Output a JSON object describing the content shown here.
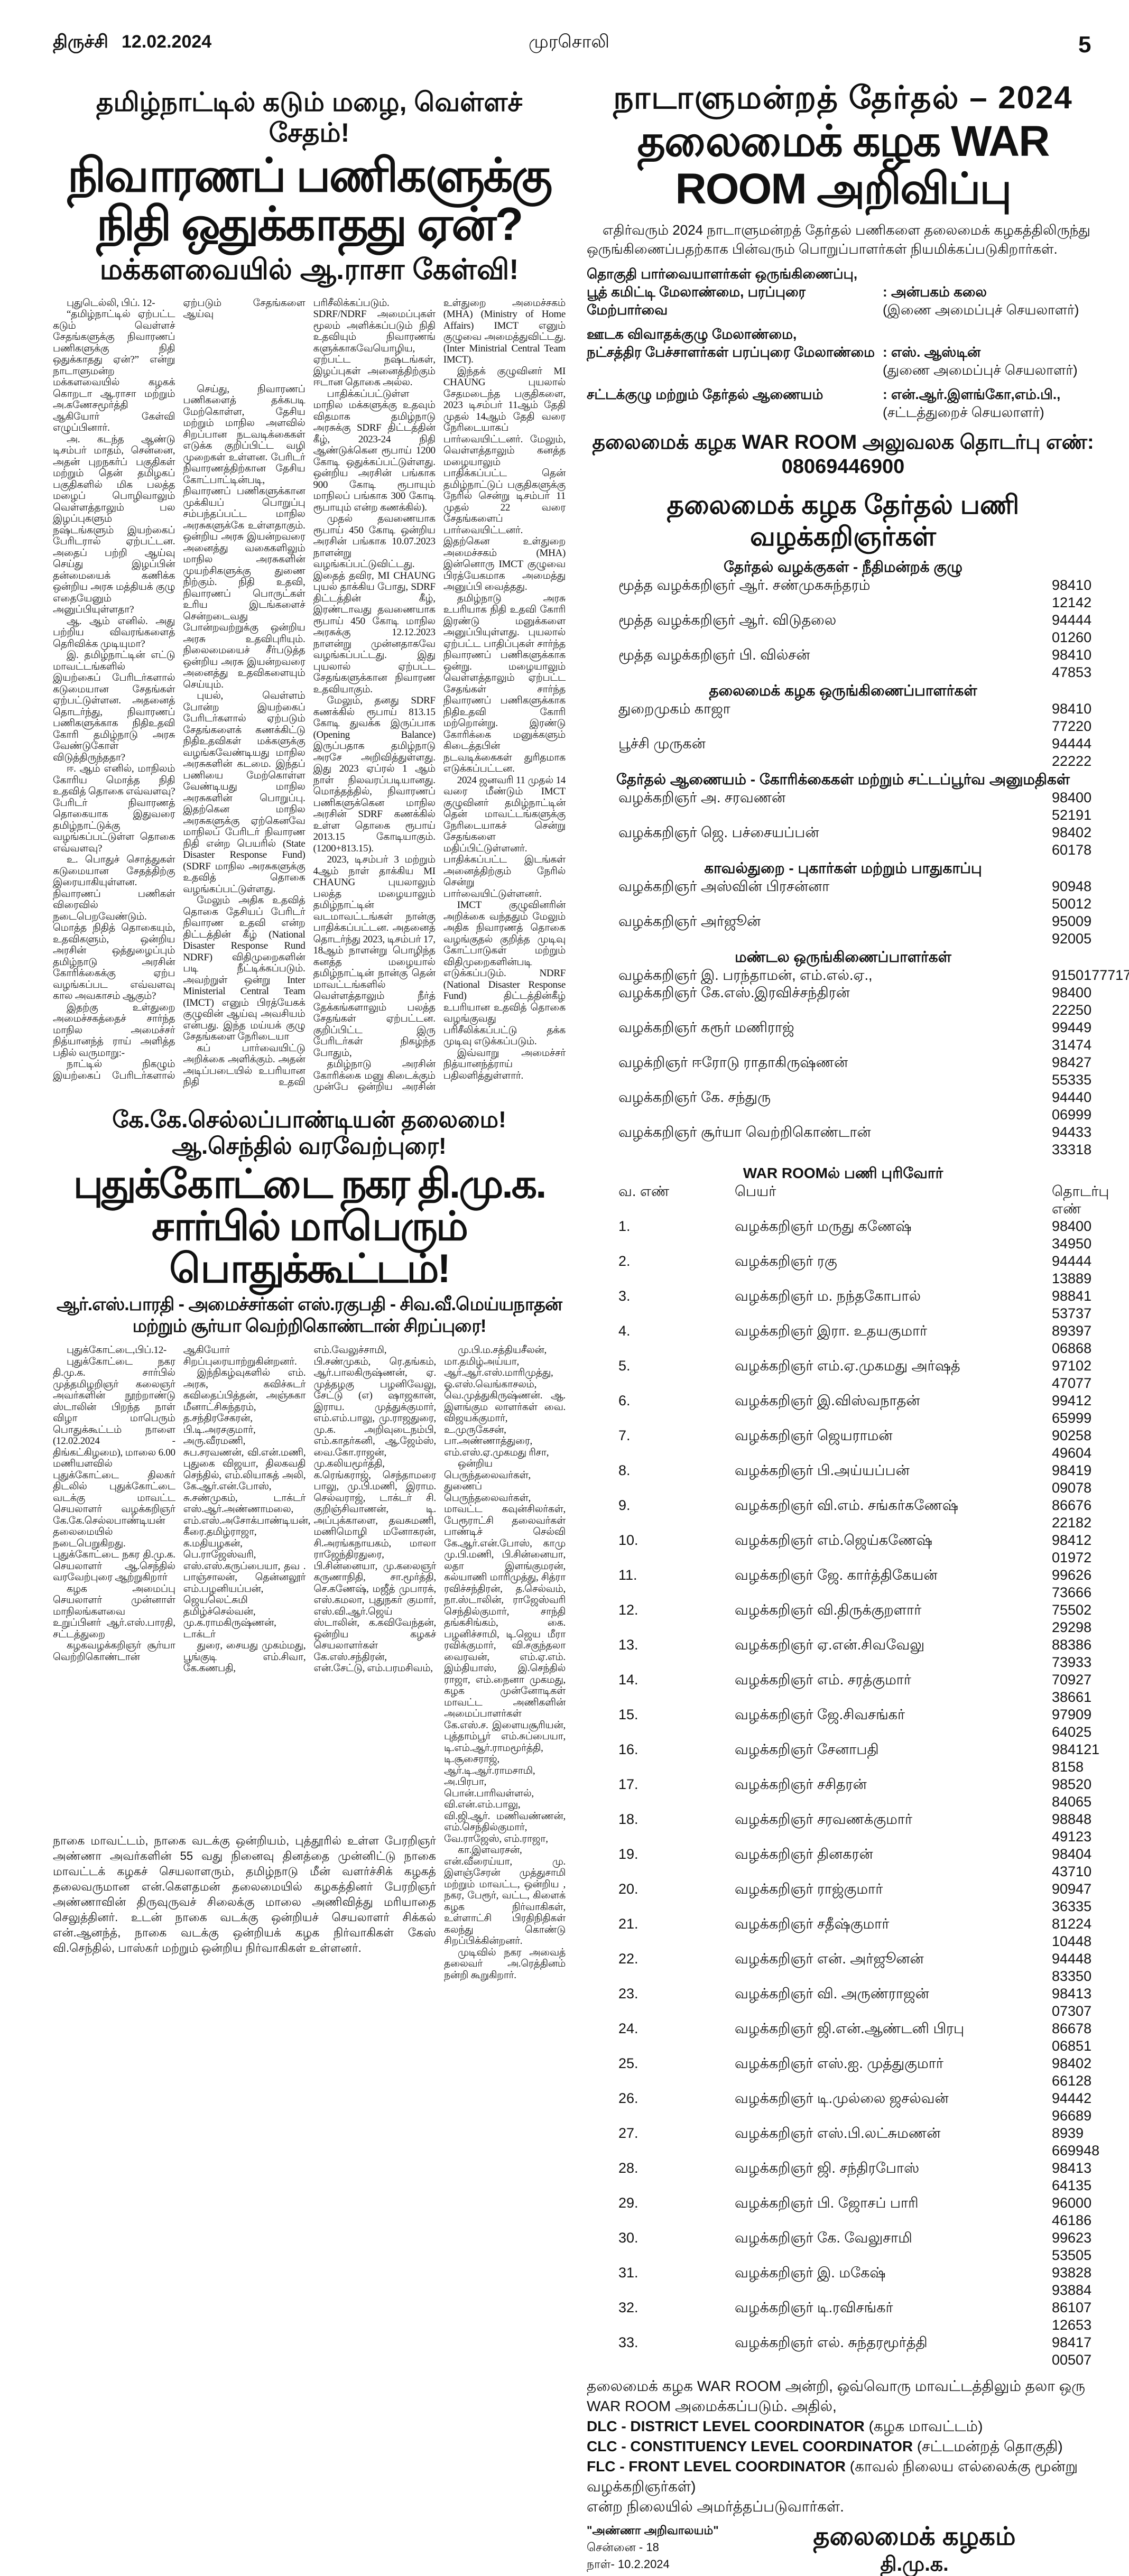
{
  "header": {
    "city": "திருச்சி",
    "date": "12.02.2024",
    "paper": "முரசொலி",
    "page": "5"
  },
  "article1": {
    "kicker": "தமிழ்நாட்டில் கடும் மழை, வெள்ளச் சேதம்!",
    "headline": "நிவாரணப் பணிகளுக்கு நிதி ஒதுக்காதது ஏன்?",
    "subhead": "மக்களவையில் ஆ.ராசா கேள்வி!",
    "columns": [
      [
        "புதுடெல்லி, பிப். 12-",
        "“தமிழ்நாட்டில் ஏற்பட்ட கடும் வெள்ளச் சேதங்களுக்கு நிவாரணப் பணிகளுக்கு நிதி ஒதுக்காதது ஏன்?” என்று நாடாளுமன்ற மக்களவையில் கழகக் கொறடா ஆ.ராசா மற்றும் அ.கணேசமூர்த்தி ஆகியோர் கேள்வி எழுப்பினார்.",
        "அ. கடந்த ஆண்டு டிசம்பர் மாதம், சென்னை, அதன் புறநகர்ப் பகுதிகள் மற்றும் தென் தமிழகப் பகுதிகளில் மிக பலத்த மழைப் பொழிவாலும் வெள்ளத்தாலும் பல இழப்புகளும் நஷ்டங்களும் இயற்கைப் பேரிடரால் ஏற்பட்டன. அதைப் பற்றி ஆய்வு செய்து இழப்பின் தன்மையைக் கணிக்க ஒன்றிய அரசு மத்தியக் குழு எதையேனும் அனுப்பியுள்ளதா?",
        "ஆ. ஆம் எனில். அது பற்றிய விவரங்களைத் தெரிவிக்க முடியுமா?",
        "இ. தமிழ்நாட்டின் எட்டு மாவட்டங்களில் இயற்கைப் பேரிடர்களால் கடுமையான சேதங்கள் ஏற்பட்டுள்ளன. அதனைத் தொடர்ந்து, நிவாரணப் பணிகளுக்காக நிதிஉதவி கோரி தமிழ்நாடு அரசு வேண்டுகோள் விடுத்திருந்ததா?",
        "ஈ. ஆம் எனில், மாநிலம் கோரிய மொத்த நிதி உதவித் தொகை எவ்வளவு? பேரிடர் நிவாரணத் தொகையாக இதுவரை தமிழ்நாட்டுக்கு வழங்கப்பட்டுள்ள தொகை எவ்வளவு?",
        "உ. பொதுச் சொத்துகள் கடுமையான சேதத்திற்கு இரையாகியுள்ளன. நிவாரணப் பணிகள் விரைவில் நடைபெறவேண்டும். மொத்த நிதித் தொகையும், உதவிகளும், ஒன்றிய அரசின் ஒத்துழைப்பும் தமிழ்நாடு அரசின் கோரிக்கைக்கு ஏற்ப வழங்கப்பட எவ்வளவு கால அவகாசம் ஆகும்?",
        "இதற்கு உள்துறை அமைச்சகத்தைச் சார்ந்த மாநில அமைச்சர் நித்யானந்த் ராய் அளித்த பதில் வருமாறு:-",
        "நாட்டில் நிகழும் இயற்கைப் பேரிடர்களால் ஏற்படும் சேதங்களை ஆய்வு"
      ],
      [
        "செய்து, நிவாரணப் பணிகளைத் தக்கபடி மேற்கொள்ள, தேசிய மற்றும் மாநில அளவில் சிறப்பான நடவடிக்கைகள் எடுக்க குறிப்பிட்ட வழி முறைகள் உள்ளன. பேரிடர் நிவாரணத்திற்கான தேசிய கோட்பாட்டின்படி, நிவாரணப் பணிகளுக்கான முக்கியப் பொறுப்பு சம்பந்தப்பட்ட மாநில அரசுகளுக்கே உள்ளதாகும். ஒன்றிய அரசு இயன்றவரை அனைத்து வகைகளிலும் மாநில அரசுகளின் முயற்சிகளுக்கு துணை நிற்கும். நிதி உதவி, நிவாரணப் பொருட்கள் உரிய இடங்களைச் சென்றடைவது போன்றவற்றுக்கு ஒன்றிய அரசு உதவிபுரியும். நிலைமையைச் சீர்படுத்த ஒன்றிய அரசு இயன்றவரை அனைத்து உதவிகளையும் செய்யும்.",
        "புயல், வெள்ளம் போன்ற இயற்கைப் பேரிடர்களால் ஏற்படும் சேதங்களைக் கணக்கிட்டு நிதிஉதவிகள் மக்களுக்கு வழங்கவேண்டியது மாநில அரசுகளின் கடமை. இந்தப் பணியை மேற்கொள்ள வேண்டியது மாநில அரசுகளின் பொறுப்பு. இதற்கென மாநில அரசுகளுக்கு ஏற்கெனவே மாநிலப் பேரிடர் நிவாரண நிதி என்ற பெயரில் (State Disaster Response Fund) (SDRF மாநில அரசுகளுக்கு உதவித் தொகை வழங்கப்பட்டுள்ளது.",
        "மேலும் அதிக உதவித் தொகை தேசியப் பேரிடர் நிவாரண உதவி என்ற திட்டத்தின் கீழ் (National Disaster Response Rund NDRF) விதிமுறைகளின் படி நீட்டிக்கப்படும். அவற்றுள் ஒன்று Inter Ministerial Central Team (IMCT) எனும் பிரத்யேகக் குழுவின் ஆய்வு அவசியம் என்பது. இந்த மய்யக் குழு சேதங்களை நேரிடையா"
      ],
      [
        "கப் பார்வையிட்டு அறிக்கை அளிக்கும். அதன் அடிப்படையில் உபரியான நிதி உதவி பரிசீலிக்கப்படும். SDRF/NDRF அமைப்புகள் மூலம் அளிக்கப்படும் நிதி உதவியும் நிவாரணங் களுக்காகவேயொழிய, ஏற்பட்ட நஷ்டங்கள், இழப்புகள் அனைத்திற்கும் ஈடான தொகை அல்ல.",
        "பாதிக்கப்பட்டுள்ள மாநில மக்களுக்கு உதவும் விதமாக தமிழ்நாடு அரசுக்கு SDRF திட்டத்தின் கீழ், 2023-24 நிதி ஆண்டுக்கென ரூபாய் 1200 கோடி ஒதுக்கப்பட்டுள்ளது. ஒன்றிய அரசின் பங்காக 900 கோடி ரூபாயும் மாநிலப் பங்காக 300 கோடி ரூபாயும் என்ற கணக்கில்).",
        "முதல் தவணையாக ரூபாய் 450 கோடி ஒன்றிய அரசின் பங்காக 10.07.2023 நாளன்று வழங்கப்பட்டுவிட்டது. இதைத் தவிர, MI CHAUNG புயல் தாக்கிய போது, SDRF திட்டத்தின் கீழ், இரண்டாவது தவணையாக ரூபாய் 450 கோடி மாநில அரசுக்கு 12.12.2023 நாளன்று முன்னதாகவே வழங்கப்பட்டது. இது புயலால் ஏற்பட்ட சேதங்களுக்கான நிவாரண உதவியாகும்.",
        "மேலும், தனது SDRF கணக்கில் ரூபாய் 813.15 கோடி துவக்க இருப்பாக (Opening Balance) இருப்பதாக தமிழ்நாடு அரசே அறிவித்துள்ளது. இது 2023 ஏப்ரல் 1 ஆம் நாள் நிலவரப்படியானது. மொத்தத்தில், நிவாரணப் பணிகளுக்கென மாநில அரசின் SDRF கணக்கில் உள்ள தொகை ரூபாய் 2013.15 கோடியாகும். (1200+813.15).",
        "2023, டிசம்பர் 3 மற்றும் 4ஆம் நாள் தாக்கிய MI CHAUNG புயலாலும் பலத்த மழையாலும் தமிழ்நாட்டின் வடமாவட்டங்கள் நான்கு பாதிக்கப்பட்டன. அதனைத் தொடர்ந்து 2023, டிசம்பர் 17, 18ஆம் நாளன்று பொழிந்த கனத்த மழையால் தமிழ்நாட்டின் நான்கு தென் மாவட்டங்களில் வெள்ளத்தாலும் நீர்த் தேக்கங்களாலும் பலத்த சேதங்கள் ஏற்பட்டன. குறிப்பிட்ட இரு பேரிடர்கள் நிகழ்ந்த போதும்,"
      ],
      [
        "தமிழ்நாடு அரசின் கோரிக்கை மனு கிடைக்கும் முன்பே ஒன்றிய அரசின் உள்துறை அமைச்சகம் (MHA) (Ministry of Home Affairs) IMCT எனும் குழுவை அமைத்துவிட்டது. (Inter Ministrial Central Team IMCT).",
        "இந்தக் குழுவினர் MI CHAUNG புயலால் சேதமடைந்த பகுதிகளை, 2023 டிசம்பர் 11ஆம் தேதி முதல் 14ஆம் தேதி வரை நேரிடையாகப் பார்வையிட்டனர். மேலும், வெள்ளத்தாலும் கனத்த மழையாலும் பாதிக்கப்பட்ட தென் தமிழ்நாட்டுப் பகுதிகளுக்கு நேரில் சென்று டிசம்பர் 11 முதல் 22 வரை சேதங்களைப் பார்வையிட்டனர். இதற்கென உள்துறை அமைச்சகம் (MHA) இன்னொரு IMCT குழுவை பிரத்யேகமாக அமைத்து அனுப்பி வைத்தது.",
        "தமிழ்நாடு அரசு உபரியாக நிதி உதவி கோரி இரண்டு மனுக்களை அனுப்பியுள்ளது. புயலால் ஏற்பட்ட பாதிப்புகள் சார்ந்த நிவாரணப் பணிகளுக்காக ஒன்று. மழையாலும் வெள்ளத்தாலும் ஏற்பட்ட சேதங்கள் சார்ந்த நிவாரணப் பணிகளுக்காக நிதிஉதவி கோரி மற்றொன்று. இரண்டு கோரிக்கை மனுக்களும் கிடைத்தபின் நடவடிக்கைகள் துரிதமாக எடுக்கப்பட்டன.",
        "2024 ஜனவரி 11 முதல் 14 வரை மீண்டும் IMCT குழுவினர் தமிழ்நாட்டின் தென் மாவட்டங்களுக்கு நேரிடையாகச் சென்று சேதங்களை மதிப்பிட்டுள்ளனர். பாதிக்கப்பட்ட இடங்கள் அனைத்திற்கும் நேரில் சென்று பார்வையிட்டுள்ளனர்.",
        "IMCT குழுவினரின் அறிக்கை வந்ததும் மேலும் அதிக நிவாரணத் தொகை வழங்குதல் குறித்த முடிவு கோட்பாடுகள் மற்றும் விதிமுறைகளின்படி எடுக்கப்படும். NDRF (National Disaster Response Fund) திட்டத்தின்கீழ் உபரியான உதவித் தொகை வழங்குவது பரிசீலிக்கப்பட்டு தக்க முடிவு எடுக்கப்படும்.",
        "இவ்வாறு அமைச்சர் நித்யானந்த்ராய் பதிலளித்துள்ளார்."
      ]
    ]
  },
  "article2": {
    "kicker": "கே.கே.செல்லப்பாண்டியன் தலைமை! ஆ.செந்தில் வரவேற்புரை!",
    "headline": "புதுக்கோட்டை நகர தி.மு.க. சார்பில் மாபெரும் பொதுக்கூட்டம்!",
    "subhead": "ஆர்.எஸ்.பாரதி - அமைச்சர்கள் எஸ்.ரகுபதி - சிவ.வீ.மெய்யநாதன் மற்றும் சூர்யா வெற்றிகொண்டான் சிறப்புரை!",
    "columns": [
      [
        "புதுக்கோட்டை,பிப்.12-",
        "புதுக்கோட்டை நகர தி.மு.க. சார்பில் முத்தமிழறிஞர் கலைஞர் அவர்களின் நூற்றாண்டு ஸ்டாலின் பிறந்த நாள் விழா மாபெரும் பொதுக்கூட்டம் நாளை (12.02.2024 - திங்கட்கிழமை), மாலை 6.00 மணியளவில் புதுக்கோட்டை திலகர் திடலில் புதுக்கோட்டை வடக்கு மாவட்ட செயலாளர் வழக்கறிஞர் கே.கே.செல்லபாண்டியன் தலைமையில் நடைபெறுகிறது. புதுக்கோட்டை நகர தி.மு.க. செயலாளர் ஆ.செந்தில் வரவேற்புரை ஆற்றுகிறார்",
        "கழக அமைப்பு செயலாளர் முன்னாள் மாநிலங்களவை உறுப்பினர் ஆர்.எஸ்.பாரதி, சட்டத்துறை"
      ],
      [
        "கழகவழக்கறிஞர் சூர்யா வெற்றிகொண்டான் ஆகியோர் சிறப்புரையாற்றுகின்றனர்.",
        "இந்நிகழ்வுகளில் எம். அரசு, கவிச்சுடர் கவிதைப்பித்தன், அஞ்சுகா மீனாட்சிசுந்தரம், த.சந்திரசேகரன், பி.டி.அரசகுமார், அரு.வீரமணி, சுப.சரவணன், வி.என்.மணி, புதுகை விஜயா, திலகவதி செந்தில், எம்.லியாகத் அலி, கே.ஆர்.என்.போஸ், சு.சண்முகம், டாக்டர் எஸ்.ஆர்.அண்ணாமலை, எம்.எஸ்.அசோக்பாண்டியன், கீரை.தமிழ்ராஜா, க.மதியழகன், பெ.ராஜேஸ்வரி, எஸ்.எஸ்.கருப்பையா, தவ . பாஞ்சாலன், தென்னலூர் எம்.பழனியப்பன், ஜெயலெட்சுமி தமிழ்ச்செல்வன், மு.க.ராமகிருஷ்ணன், டாக்டர்"
      ],
      [
        "துரை, சையது முகம்மது, பூங்குடி எம்.சிவா, கே.கணபதி, எம்.வேலுச்சாமி, பி.சண்முகம், ரெ.தங்கம், ஆர்.பாலகிருஷ்ணன், ஏ. முத்தழகு பழனிவேலு, சேட்டு (எ) ஷாஜகான், இராய. முத்துக்குமார், எம்.எம்.பாலு, மு.ராஜதுரை, மு.க. அறிவுடைநம்பி, எம்.காதர்கனி, ஆ.ஜேம்ஸ், வை.கோ.ராஜன், மு.கலியமூர்த்தி, க.ரெங்கராஜ், செந்தாமரை பாலு, மு.பி.மணி, இராம. செல்வராஜ், டாக்டர் சி. குறிஞ்சிவாணன், டி. அப்புக்காளை, தவசுமணி, மணிமொழி மனோகரன், சி.அரங்கநாயகம், மாலா ராஜேந்திரதுரை, பி.சின்னையா, மு.கலைஞர் கருணாநிதி, சா.மூர்த்தி, செ.கணேஷ், மஜீத் முபாரக், எஸ்.கமலா, புதுநகர் குமார், எஸ்.வி.ஆர்.ஜெய் ஸ்டாலின், க.கவிவேந்தன், ஒன்றிய கழகச் செயலாளர்கள் கே.எஸ்.சந்திரன், என்.சேட்டு, எம்.பரமசிவம்,"
      ],
      [
        "மு.பி.ம.சத்தியசீலன், மா.தமிழ்அய்யா, ஆர்.ஆர்.எஸ்.மாரிமுத்து, ஓ.எஸ்.வெங்காசலம், வெ.முத்துகிருஷ்ணன். ஆ. இளங்கும லாளர்கள் வை. விஜயக்குமார், உ.முருகேசன், பா.அண்ணாத்துரை, எம்.எஸ்.ஏ.முகமது ரிசா,",
        "ஒன்றிய பெருந்தலைவர்கள், துணைப் பெருந்தலைவர்கள், மாவட்ட கவுன்சிலர்கள், பேரூராட்சி தலைவர்கள் பாண்டிச் செல்வி கே.ஆர்.என்.போஸ், காமு மு.பி.மணி, பி.சின்னையா, லதா இளங்குமரன், கல்யாணி மாரிமுத்து, சித்ரா ரவிச்சந்திரன், த.செல்வம், நா.ஸ்டாலின், ராஜேஸ்வரி செந்தில்குமார், சாந்தி தங்கசிங்கம், கை. பழனிச்சாமி, டி.ஜெய மீரா ரவிக்குமார், வி.சகுந்தலா வைரவன், எம்.ஏ.எம். இம்தியாஸ், இ.செந்தில் ராஜா, எம்.நைனா முகமது, கழக முன்னோடிகள் மாவட்ட அணிகளின் அமைப்பாளர்கள் கே.எஸ்.ச. இளையசூரியன், புத்தாம்பூர் எம்.சுப்பையா, டி.எம்.ஆர்.ராமமூர்த்தி, டி.சூசைராஜ், ஆர்.டி.ஆர்.ராமசாமி, அ.பிரபா, பொன்.பாரிவள்ளல், வி.என்.எம்.பாலு, வி.ஜி.ஆர். மணிவண்ணன், எம்.செந்தில்குமார், வே.ராஜேஸ், எம்.ராஜா,",
        "கா.இளவரசன், என்.வீரைய்யா, மு. இளஞ்சேரன் முத்துசாமி மற்றும் மாவட்ட, ஒன்றிய , நகர, பேரூர், வட்ட, கிளைக் கழக நிர்வாகிகள், உள்ளாட்சி பிரதிநிதிகள் கலந்து கொண்டு சிறப்பிக்கின்றனர்.",
        "முடிவில் நகர அவைத் தலைவர் அ.ரெத்தினம் நன்றி கூறுகிறார்."
      ]
    ]
  },
  "photo_caption": "நாகை மாவட்டம், நாகை வடக்கு ஒன்றியம், புத்தூரில் உள்ள பேரறிஞர் அண்ணா அவர்களின் 55 வது நினைவு தினத்தை முன்னிட்டு நாகை மாவட்டக் கழகச் செயலாளரும், தமிழ்நாடு மீன் வளர்ச்சிக் கழகத் தலைவருமான என்.கௌதமன் தலைமையில் கழகத்தினர் பேரறிஞர் அண்ணாவின் திருவுருவச் சிலைக்கு மாலை அணிவித்து மரியாதை செலுத்தினர். உடன் நாகை வடக்கு ஒன்றியச் செயலாளர் சிக்கல் என்.ஆனந்த், நாகை வடக்கு ஒன்றியக் கழக நிர்வாகிகள் கேஸ் வி.செந்தில், பாஸ்கர் மற்றும் ஒன்றிய நிர்வாகிகள் உள்ளனர்.",
  "notice": {
    "title1": "நாடாளுமன்றத் தேர்தல் – 2024",
    "title2": "தலைமைக் கழக WAR ROOM அறிவிப்பு",
    "intro": "எதிர்வரும் 2024 நாடாளுமன்றத் தேர்தல் பணிகளை தலைமைக் கழகத்திலிருந்து ஒருங்கிணைப்பதற்காக பின்வரும் பொறுப்பாளர்கள் நியமிக்கப்படுகிறார்கள்.",
    "assignments": [
      {
        "role": [
          "தொகுதி பார்வையாளர்கள் ஒருங்கிணைப்பு,",
          "பூத் கமிட்டி மேலாண்மை, பரப்புரை மேற்பார்வை"
        ],
        "name": ": அன்பகம் கலை",
        "post": "(இணை அமைப்புச் செயலாளர்)"
      },
      {
        "role": [
          "ஊடக விவாதக்குழு மேலாண்மை,",
          "நட்சத்திர பேச்சாளர்கள் பரப்புரை மேலாண்மை"
        ],
        "name": ": எஸ். ஆஸ்டின்",
        "post": "(துணை அமைப்புச் செயலாளர்)"
      },
      {
        "role": [
          "சட்டக்குழு மற்றும் தேர்தல் ஆணையம்"
        ],
        "name": ": என்.ஆர்.இளங்கோ,எம்.பி.,",
        "post": "(சட்டத்துறைச் செயலாளர்)"
      }
    ],
    "contact": "தலைமைக் கழக WAR ROOM அலுவலக தொடர்பு எண்: 08069446900",
    "lawyers_title": "தலைமைக் கழக தேர்தல் பணி வழக்கறிஞர்கள்",
    "groups": [
      {
        "title": "தேர்தல் வழக்குகள் - நீதிமன்றக் குழு",
        "rows": [
          {
            "name": "மூத்த வழக்கறிஞர் ஆர். சண்முகசுந்தரம்",
            "phone": "98410 12142"
          },
          {
            "name": "மூத்த வழக்கறிஞர் ஆர். விடுதலை",
            "phone": "94444 01260"
          },
          {
            "name": "மூத்த வழக்கறிஞர் பி. வில்சன்",
            "phone": "98410 47853"
          }
        ]
      },
      {
        "title": "தலைமைக் கழக ஒருங்கிணைப்பாளர்கள்",
        "rows": [
          {
            "name": "துறைமுகம் காஜா",
            "phone": "98410 77220"
          },
          {
            "name": "பூச்சி முருகன்",
            "phone": "94444 22222"
          }
        ]
      },
      {
        "title": "தேர்தல் ஆணையம் - கோரிக்கைகள் மற்றும் சட்டப்பூர்வ அனுமதிகள்",
        "rows": [
          {
            "name": "வழக்கறிஞர் அ. சரவணன்",
            "phone": "98400 52191"
          },
          {
            "name": "வழக்கறிஞர் ஜெ. பச்சையப்பன்",
            "phone": "98402 60178"
          }
        ]
      },
      {
        "title": "காவல்துறை - புகார்கள் மற்றும் பாதுகாப்பு",
        "rows": [
          {
            "name": "வழக்கறிஞர் அஸ்வின் பிரசன்னா",
            "phone": "90948 50012"
          },
          {
            "name": "வழக்கறிஞர் அர்ஜூன்",
            "phone": "95009 92005"
          }
        ]
      },
      {
        "title": "மண்டல ஒருங்கிணைப்பாளர்கள்",
        "rows": [
          {
            "name": "வழக்கறிஞர் இ. பரந்தாமன், எம்.எல்.ஏ.,",
            "phone": "9150177717"
          },
          {
            "name": "வழக்கறிஞர் கே.எஸ்.இரவிச்சந்திரன்",
            "phone": "98400 22250"
          },
          {
            "name": "வழக்கறிஞர் கரூர் மணிராஜ்",
            "phone": "99449 31474"
          },
          {
            "name": "வழக்றிஞர் ஈரோடு ராதாகிருஷ்ணன்",
            "phone": "98427 55335"
          },
          {
            "name": "வழக்கறிஞர் கே. சந்துரு",
            "phone": "94440 06999"
          },
          {
            "name": "வழக்கறிஞர் சூர்யா வெற்றிகொண்டான்",
            "phone": "94433 33318"
          }
        ]
      }
    ],
    "warroom_title": "WAR ROOMல் பணி புரிவோர்",
    "warroom_headers": {
      "no": "வ. எண்",
      "name": "பெயர்",
      "phone": "தொடர்பு எண்"
    },
    "warroom": [
      {
        "no": "1.",
        "name": "வழக்கறிஞர் மருது கணேஷ்",
        "phone": "98400 34950"
      },
      {
        "no": "2.",
        "name": "வழக்கறிஞர் ரகு",
        "phone": "94444 13889"
      },
      {
        "no": "3.",
        "name": "வழக்கறிஞர் ம. நந்தகோபால்",
        "phone": "98841 53737"
      },
      {
        "no": "4.",
        "name": "வழக்கறிஞர் இரா. உதயகுமார்",
        "phone": "89397 06868"
      },
      {
        "no": "5.",
        "name": "வழக்கறிஞர் எம்.ஏ.முகமது அர்ஷத்",
        "phone": "97102 47077"
      },
      {
        "no": "6.",
        "name": "வழக்கறிஞர் இ.விஸ்வநாதன்",
        "phone": "99412 65999"
      },
      {
        "no": "7.",
        "name": "வழக்கறிஞர் ஜெயராமன்",
        "phone": "90258 49604"
      },
      {
        "no": "8.",
        "name": "வழக்கறிஞர் பி.அய்யப்பன்",
        "phone": "98419 09078"
      },
      {
        "no": "9.",
        "name": "வழக்கறிஞர் வி.எம். சங்கர்கணேஷ்",
        "phone": "86676 22182"
      },
      {
        "no": "10.",
        "name": "வழக்கறிஞர் எம்.ஜெய்கணேஷ்",
        "phone": "98412 01972"
      },
      {
        "no": "11.",
        "name": "வழக்கறிஞர் ஜே. கார்த்திகேயன்",
        "phone": "99626 73666"
      },
      {
        "no": "12.",
        "name": "வழக்கறிஞர் வி.திருக்குறளார்",
        "phone": "75502 29298"
      },
      {
        "no": "13.",
        "name": "வழக்கறிஞர் ஏ.என்.சிவவேலு",
        "phone": "88386 73933"
      },
      {
        "no": "14.",
        "name": "வழக்கறிஞர் எம். சரத்குமார்",
        "phone": "70927 38661"
      },
      {
        "no": "15.",
        "name": "வழக்கறிஞர் ஜே.சிவசங்கர்",
        "phone": "97909 64025"
      },
      {
        "no": "16.",
        "name": "வழக்கறிஞர் சேனாபதி",
        "phone": "984121 8158"
      },
      {
        "no": "17.",
        "name": "வழக்கறிஞர் சசிதரன்",
        "phone": "98520 84065"
      },
      {
        "no": "18.",
        "name": "வழக்கறிஞர் சரவணக்குமார்",
        "phone": "98848 49123"
      },
      {
        "no": "19.",
        "name": "வழக்கறிஞர் தினகரன்",
        "phone": "98404 43710"
      },
      {
        "no": "20.",
        "name": "வழக்கறிஞர் ராஜ்குமார்",
        "phone": "90947 36335"
      },
      {
        "no": "21.",
        "name": "வழக்கறிஞர் சதீஷ்குமார்",
        "phone": "81224 10448"
      },
      {
        "no": "22.",
        "name": "வழக்கறிஞர் என். அர்ஜூனன்",
        "phone": "94448 83350"
      },
      {
        "no": "23.",
        "name": "வழக்கறிஞர் வி. அருண்ராஜன்",
        "phone": "98413 07307"
      },
      {
        "no": "24.",
        "name": "வழக்கறிஞர் ஜி.என்.ஆண்டனி பிரபு",
        "phone": "86678 06851"
      },
      {
        "no": "25.",
        "name": "வழக்கறிஞர் எஸ்.ஐ. முத்துகுமார்",
        "phone": "98402 66128"
      },
      {
        "no": "26.",
        "name": "வழக்கறிஞர் டி.முல்லை ஜசல்வன்",
        "phone": "94442 96689"
      },
      {
        "no": "27.",
        "name": "வழக்கறிஞர் எஸ்.பி.லட்சுமணன்",
        "phone": "8939 669948"
      },
      {
        "no": "28.",
        "name": "வழக்கறிஞர் ஜி. சந்திரபோஸ்",
        "phone": "98413 64135"
      },
      {
        "no": "29.",
        "name": "வழக்கறிஞர் பி. ஜோசப் பாரி",
        "phone": "96000 46186"
      },
      {
        "no": "30.",
        "name": "வழக்கறிஞர் கே. வேலுசாமி",
        "phone": "99623 53505"
      },
      {
        "no": "31.",
        "name": "வழக்கறிஞர் இ. மகேஷ்",
        "phone": "93828 93884"
      },
      {
        "no": "32.",
        "name": "வழக்கறிஞர் டி.ரவிசங்கர்",
        "phone": "86107 12653"
      },
      {
        "no": "33.",
        "name": "வழக்கறிஞர் எல். சுந்தரமூர்த்தி",
        "phone": "98417 00507"
      }
    ],
    "footer_intro": "தலைமைக் கழக WAR ROOM அன்றி, ஒவ்வொரு மாவட்டத்திலும் தலா ஒரு WAR ROOM அமைக்கப்படும். அதில்,",
    "levels": [
      {
        "code": "DLC - DISTRICT LEVEL COORDINATOR",
        "desc": "(கழக மாவட்டம்)"
      },
      {
        "code": "CLC - CONSTITUENCY LEVEL COORDINATOR",
        "desc": "(சட்டமன்றத் தொகுதி)"
      },
      {
        "code": "FLC - FRONT LEVEL COORDINATOR",
        "desc": "(காவல் நிலைய எல்லைக்கு மூன்று வழக்கறிஞர்கள்)"
      }
    ],
    "footer_end": "என்ற நிலையில் அமர்த்தப்படுவார்கள்.",
    "place": "\"அண்ணா அறிவாலயம்\"",
    "city": "சென்னை - 18",
    "date": "நாள்- 10.2.2024",
    "signature": "தலைமைக் கழகம்",
    "party": "தி.மு.க."
  }
}
